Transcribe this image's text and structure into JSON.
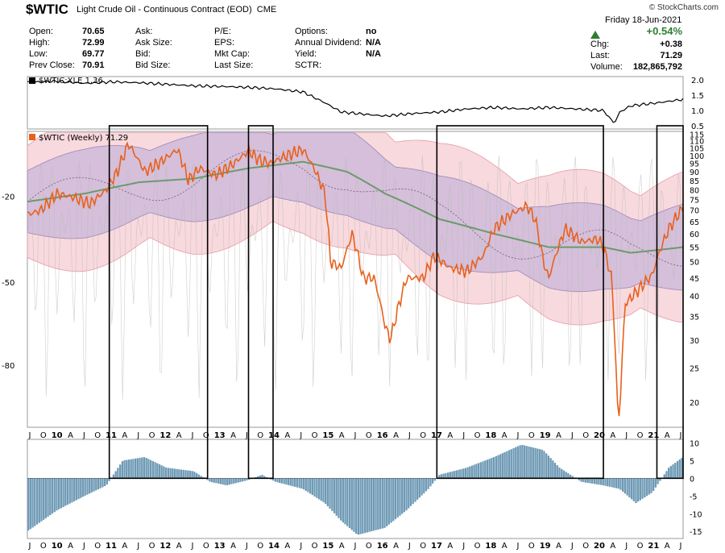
{
  "header": {
    "symbol": "$WTIC",
    "subtitle": "Light Crude Oil - Continuous Contract (EOD)",
    "exchange": "CME",
    "credit": "© StockCharts.com",
    "date": "Friday 18-Jun-2021",
    "pct_change": "+0.54%",
    "up_icon": "triangle-up-icon"
  },
  "quote": {
    "col1": [
      {
        "label": "Open:",
        "value": "70.65"
      },
      {
        "label": "High:",
        "value": "72.99"
      },
      {
        "label": "Low:",
        "value": "69.77"
      },
      {
        "label": "Prev Close:",
        "value": "70.91"
      }
    ],
    "col2": [
      {
        "label": "Ask:",
        "value": ""
      },
      {
        "label": "Ask Size:",
        "value": ""
      },
      {
        "label": "Bid:",
        "value": ""
      },
      {
        "label": "Bid Size:",
        "value": ""
      }
    ],
    "col3": [
      {
        "label": "P/E:",
        "value": ""
      },
      {
        "label": "EPS:",
        "value": ""
      },
      {
        "label": "Mkt Cap:",
        "value": ""
      },
      {
        "label": "Last Size:",
        "value": ""
      }
    ],
    "col4": [
      {
        "label": "Options:",
        "value": "no"
      },
      {
        "label": "Annual Dividend:",
        "value": "N/A"
      },
      {
        "label": "Yield:",
        "value": "N/A"
      },
      {
        "label": "SCTR:",
        "value": ""
      }
    ],
    "right": [
      {
        "label": "Chg:",
        "value": "+0.38"
      },
      {
        "label": "Last:",
        "value": "71.29"
      },
      {
        "label": "Volume:",
        "value": "182,865,792"
      }
    ]
  },
  "colors": {
    "price": "#e8601c",
    "ma": "#6b9a6b",
    "outer_band": "#f5c9cf",
    "inner_band": "#c9b5d8",
    "hist": "#6f9ab5",
    "ratio": "#000000",
    "box": "#000000"
  },
  "chart_data": [
    {
      "type": "line",
      "title": "$WTIC:XLE 1.36",
      "series": [
        {
          "name": "$WTIC:XLE",
          "last": 1.36,
          "x": [
            2009.45,
            2010.0,
            2010.5,
            2011.0,
            2011.5,
            2012.0,
            2012.5,
            2013.0,
            2013.5,
            2014.0,
            2014.5,
            2014.9,
            2015.2,
            2015.5,
            2015.8,
            2016.0,
            2016.5,
            2017.0,
            2017.5,
            2018.0,
            2018.5,
            2019.0,
            2019.5,
            2020.0,
            2020.2,
            2020.3,
            2020.5,
            2021.0,
            2021.46
          ],
          "values": [
            1.92,
            1.95,
            1.88,
            1.93,
            1.9,
            1.85,
            1.8,
            1.78,
            1.75,
            1.7,
            1.6,
            1.25,
            0.95,
            0.9,
            0.85,
            0.82,
            0.9,
            0.95,
            1.05,
            1.1,
            1.05,
            1.1,
            1.05,
            1.0,
            0.58,
            0.95,
            1.15,
            1.25,
            1.36
          ]
        }
      ],
      "yticks": [
        0.5,
        1.0,
        1.5,
        2.0
      ],
      "ylim": [
        0.4,
        2.1
      ]
    },
    {
      "type": "line",
      "title": "$WTIC (Weekly) 71.29",
      "y_scale": "log",
      "ylim": [
        17,
        117
      ],
      "right_ticks": [
        20,
        25,
        30,
        35,
        40,
        45,
        50,
        55,
        60,
        65,
        70,
        75,
        80,
        85,
        90,
        95,
        100,
        105,
        110,
        115
      ],
      "left_ticks": [
        "-20",
        "-50",
        "-80"
      ],
      "x_labels": [
        "J",
        "O",
        "10",
        "A",
        "J",
        "O",
        "11",
        "A",
        "J",
        "O",
        "12",
        "A",
        "J",
        "O",
        "13",
        "A",
        "J",
        "O",
        "14",
        "A",
        "J",
        "O",
        "15",
        "A",
        "J",
        "O",
        "16",
        "A",
        "J",
        "O",
        "17",
        "A",
        "J",
        "O",
        "18",
        "A",
        "J",
        "O",
        "19",
        "A",
        "J",
        "O",
        "20",
        "A",
        "J",
        "O",
        "21",
        "A",
        "J"
      ],
      "series": [
        {
          "name": "$WTIC (Weekly)",
          "last": 71.29,
          "x": [
            2009.45,
            2009.7,
            2010.0,
            2010.3,
            2010.6,
            2010.9,
            2011.1,
            2011.3,
            2011.6,
            2011.9,
            2012.2,
            2012.4,
            2012.6,
            2012.9,
            2013.2,
            2013.5,
            2013.7,
            2013.9,
            2014.2,
            2014.5,
            2014.7,
            2014.9,
            2015.0,
            2015.2,
            2015.4,
            2015.6,
            2015.8,
            2016.0,
            2016.1,
            2016.4,
            2016.7,
            2016.9,
            2017.2,
            2017.5,
            2017.8,
            2018.0,
            2018.3,
            2018.6,
            2018.75,
            2018.9,
            2019.0,
            2019.3,
            2019.6,
            2019.9,
            2020.0,
            2020.15,
            2020.25,
            2020.3,
            2020.4,
            2020.6,
            2020.9,
            2021.0,
            2021.2,
            2021.46
          ],
          "values": [
            68,
            70,
            78,
            76,
            73,
            80,
            90,
            108,
            90,
            96,
            104,
            85,
            92,
            88,
            94,
            103,
            97,
            95,
            100,
            104,
            92,
            78,
            50,
            48,
            60,
            45,
            45,
            33,
            30,
            45,
            45,
            52,
            48,
            47,
            52,
            62,
            68,
            72,
            66,
            50,
            45,
            62,
            57,
            58,
            55,
            45,
            20,
            18,
            38,
            41,
            46,
            52,
            62,
            71.29
          ]
        },
        {
          "name": "Moving average",
          "x": [
            2009.45,
            2010.5,
            2011.5,
            2012.5,
            2013.5,
            2014.5,
            2015.3,
            2016.0,
            2017.0,
            2018.0,
            2019.0,
            2020.0,
            2020.5,
            2021.0,
            2021.46
          ],
          "values": [
            74,
            78,
            84,
            86,
            92,
            96,
            90,
            78,
            66,
            60,
            55,
            55,
            53,
            54,
            55
          ]
        }
      ],
      "boxes": [
        {
          "from": 2010.95,
          "to": 2012.75
        },
        {
          "from": 2013.5,
          "to": 2013.95
        },
        {
          "from": 2016.95,
          "to": 2020.0
        },
        {
          "from": 2020.98,
          "to": 2021.46
        }
      ]
    },
    {
      "type": "bar",
      "title": "Momentum histogram",
      "ylim": [
        -17,
        11
      ],
      "yticks": [
        10,
        5,
        0,
        -5,
        -10,
        -15
      ],
      "x_labels": [
        "J",
        "O",
        "10",
        "A",
        "J",
        "O",
        "11",
        "A",
        "J",
        "O",
        "12",
        "A",
        "J",
        "O",
        "13",
        "A",
        "J",
        "O",
        "14",
        "A",
        "J",
        "O",
        "15",
        "A",
        "J",
        "O",
        "16",
        "A",
        "J",
        "O",
        "17",
        "A",
        "J",
        "O",
        "18",
        "A",
        "J",
        "O",
        "19",
        "A",
        "J",
        "O",
        "20",
        "A",
        "J",
        "O",
        "21",
        "A",
        "J"
      ],
      "x": [
        2009.45,
        2010.0,
        2010.5,
        2010.9,
        2011.2,
        2011.6,
        2012.0,
        2012.5,
        2012.8,
        2013.1,
        2013.5,
        2013.75,
        2014.0,
        2014.5,
        2014.9,
        2015.2,
        2015.5,
        2016.0,
        2016.4,
        2016.8,
        2017.0,
        2017.5,
        2018.0,
        2018.5,
        2018.9,
        2019.2,
        2019.6,
        2020.0,
        2020.3,
        2020.6,
        2020.9,
        2021.2,
        2021.46
      ],
      "values": [
        -15,
        -9,
        -5,
        -2,
        5,
        6,
        3,
        2,
        -1,
        -2,
        -0.5,
        1,
        -1,
        -3,
        -7,
        -12,
        -16,
        -14,
        -9,
        -3,
        1,
        3,
        6,
        9.5,
        8,
        3,
        -1,
        -2,
        -3,
        -7,
        -4,
        3,
        6
      ]
    }
  ]
}
